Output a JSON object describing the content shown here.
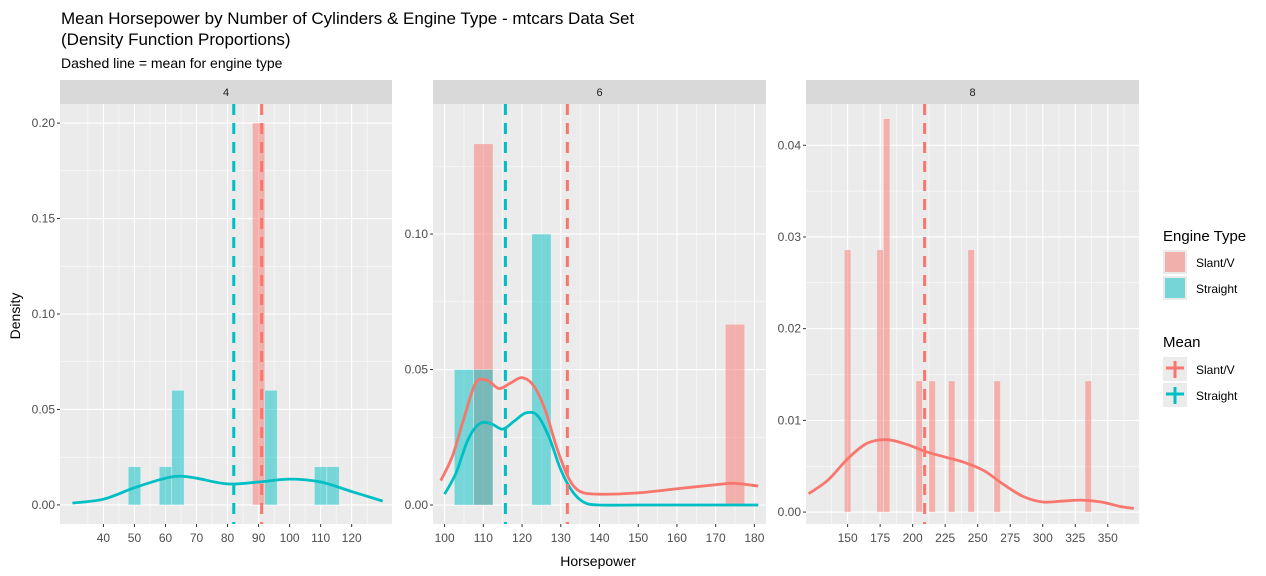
{
  "chart_data": {
    "type": "histogram-density-faceted",
    "title": "Mean Horsepower by Number of Cylinders & Engine Type - mtcars Data Set\n(Density Function Proportions)",
    "subtitle": "Dashed line = mean for engine type",
    "xlabel": "Horsepower",
    "ylabel": "Density",
    "colors": {
      "Slant/V": "#F8766D",
      "Straight": "#00BFC4"
    },
    "panels": [
      {
        "label": "4",
        "xlim": [
          26,
          133
        ],
        "ylim": [
          -0.01,
          0.21
        ],
        "xticks": [
          40,
          50,
          60,
          70,
          80,
          90,
          100,
          110,
          120
        ],
        "yticks": [
          0.0,
          0.05,
          0.1,
          0.15,
          0.2
        ],
        "ytick_labels": [
          "0.00",
          "0.05",
          "0.10",
          "0.15",
          "0.20"
        ],
        "bars": [
          {
            "series": "Slant/V",
            "x0": 88,
            "x1": 92,
            "value": 0.2
          },
          {
            "series": "Straight",
            "x0": 48,
            "x1": 52,
            "value": 0.02
          },
          {
            "series": "Straight",
            "x0": 58,
            "x1": 62,
            "value": 0.02
          },
          {
            "series": "Straight",
            "x0": 62,
            "x1": 66,
            "value": 0.06
          },
          {
            "series": "Straight",
            "x0": 92,
            "x1": 96,
            "value": 0.06
          },
          {
            "series": "Straight",
            "x0": 108,
            "x1": 112,
            "value": 0.02
          },
          {
            "series": "Straight",
            "x0": 112,
            "x1": 116,
            "value": 0.02
          }
        ],
        "density": [
          {
            "series": "Straight",
            "x": [
              30,
              40,
              50,
              60,
              65,
              70,
              80,
              90,
              100,
              110,
              120,
              130
            ],
            "y": [
              0.001,
              0.003,
              0.009,
              0.014,
              0.015,
              0.014,
              0.011,
              0.012,
              0.0135,
              0.012,
              0.007,
              0.002
            ]
          }
        ],
        "means": [
          {
            "series": "Slant/V",
            "x": 91
          },
          {
            "series": "Straight",
            "x": 82
          }
        ]
      },
      {
        "label": "6",
        "xlim": [
          97,
          183
        ],
        "ylim": [
          -0.007,
          0.148
        ],
        "xticks": [
          100,
          110,
          120,
          130,
          140,
          150,
          160,
          170,
          180
        ],
        "yticks": [
          0.0,
          0.05,
          0.1
        ],
        "ytick_labels": [
          "0.00",
          "0.05",
          "0.10"
        ],
        "bars": [
          {
            "series": "Slant/V",
            "x0": 107.5,
            "x1": 112.5,
            "value": 0.1333
          },
          {
            "series": "Slant/V",
            "x0": 172.5,
            "x1": 177.5,
            "value": 0.0667
          },
          {
            "series": "Straight",
            "x0": 102.5,
            "x1": 107.5,
            "value": 0.05
          },
          {
            "series": "Straight",
            "x0": 107.5,
            "x1": 112.5,
            "value": 0.05
          },
          {
            "series": "Straight",
            "x0": 122.5,
            "x1": 127.5,
            "value": 0.1
          }
        ],
        "density": [
          {
            "series": "Slant/V",
            "x": [
              99,
              102,
              105,
              108,
              111,
              114,
              117,
              120,
              123,
              126,
              129,
              132,
              135,
              140,
              150,
              160,
              170,
              175,
              181
            ],
            "y": [
              0.009,
              0.018,
              0.032,
              0.045,
              0.046,
              0.043,
              0.045,
              0.047,
              0.044,
              0.035,
              0.021,
              0.01,
              0.005,
              0.004,
              0.0045,
              0.006,
              0.0075,
              0.008,
              0.007
            ]
          },
          {
            "series": "Straight",
            "x": [
              100,
              103,
              106,
              109,
              112,
              115,
              118,
              121,
              124,
              127,
              130,
              133,
              136,
              140,
              150,
              165,
              181
            ],
            "y": [
              0.004,
              0.012,
              0.024,
              0.03,
              0.03,
              0.028,
              0.031,
              0.034,
              0.033,
              0.025,
              0.013,
              0.005,
              0.001,
              0.0,
              0.0,
              0.0,
              0.0
            ]
          }
        ],
        "means": [
          {
            "series": "Slant/V",
            "x": 131.7
          },
          {
            "series": "Straight",
            "x": 115.7
          }
        ]
      },
      {
        "label": "8",
        "xlim": [
          118,
          374
        ],
        "ylim": [
          -0.0013,
          0.0445
        ],
        "xticks": [
          150,
          175,
          200,
          225,
          250,
          275,
          300,
          325,
          350
        ],
        "yticks": [
          0.0,
          0.01,
          0.02,
          0.03,
          0.04
        ],
        "ytick_labels": [
          "0.00",
          "0.01",
          "0.02",
          "0.03",
          "0.04"
        ],
        "bars": [
          {
            "series": "Slant/V",
            "x0": 147.5,
            "x1": 152.5,
            "value": 0.0286
          },
          {
            "series": "Slant/V",
            "x0": 172.5,
            "x1": 177.5,
            "value": 0.0286
          },
          {
            "series": "Slant/V",
            "x0": 177.5,
            "x1": 182.5,
            "value": 0.0429
          },
          {
            "series": "Slant/V",
            "x0": 202.5,
            "x1": 207.5,
            "value": 0.0143
          },
          {
            "series": "Slant/V",
            "x0": 212.5,
            "x1": 217.5,
            "value": 0.0143
          },
          {
            "series": "Slant/V",
            "x0": 227.5,
            "x1": 232.5,
            "value": 0.0143
          },
          {
            "series": "Slant/V",
            "x0": 242.5,
            "x1": 247.5,
            "value": 0.0286
          },
          {
            "series": "Slant/V",
            "x0": 262.5,
            "x1": 267.5,
            "value": 0.0143
          },
          {
            "series": "Slant/V",
            "x0": 332.5,
            "x1": 337.5,
            "value": 0.0143
          }
        ],
        "density": [
          {
            "series": "Slant/V",
            "x": [
              120,
              135,
              150,
              165,
              180,
              195,
              210,
              225,
              240,
              255,
              270,
              285,
              300,
              315,
              330,
              345,
              360,
              370
            ],
            "y": [
              0.002,
              0.0035,
              0.0058,
              0.0075,
              0.0079,
              0.0074,
              0.0066,
              0.006,
              0.0054,
              0.0045,
              0.003,
              0.0017,
              0.0011,
              0.0012,
              0.0013,
              0.0011,
              0.0006,
              0.0004
            ]
          }
        ],
        "means": [
          {
            "series": "Slant/V",
            "x": 209.2
          }
        ]
      }
    ],
    "legend": {
      "position": "right",
      "fill_title": "Engine Type",
      "fill_items": [
        "Slant/V",
        "Straight"
      ],
      "line_title": "Mean",
      "line_items": [
        "Slant/V",
        "Straight"
      ]
    },
    "grid": true
  }
}
